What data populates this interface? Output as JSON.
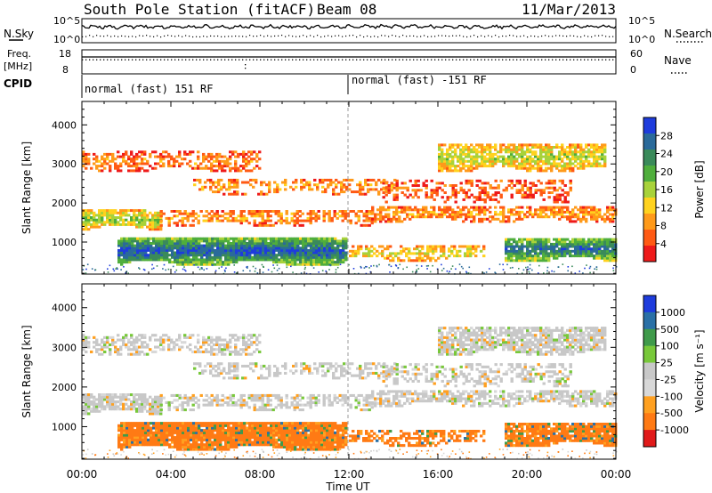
{
  "header": {
    "station": "South Pole Station (fitACF)",
    "beam": "Beam 08",
    "date": "11/Mar/2013"
  },
  "top_panels": {
    "nsky_label": "N.Sky",
    "nsearch_label": "N.Search",
    "noise_ticks_left": [
      "10^5",
      "10^0"
    ],
    "noise_ticks_right": [
      "10^5",
      "10^0"
    ],
    "freq_label_1": "Freq.",
    "freq_label_2": "[MHz]",
    "freq_ticks": [
      "18",
      "8"
    ],
    "nave_label": "Nave",
    "nave_ticks": [
      "60",
      "0"
    ],
    "cpid_label": "CPID",
    "cpid_segments": [
      "normal (fast) 151 RF",
      "normal (fast) -151 RF"
    ]
  },
  "colors": {
    "power_scale": [
      "#1e3cdc",
      "#2a6a9a",
      "#3a8a5a",
      "#4fae3c",
      "#a8d23a",
      "#ffd21e",
      "#ff9a1a",
      "#ff5a14",
      "#ee1a1a"
    ],
    "velocity_scale": [
      "#1e3cdc",
      "#2a70a6",
      "#3f9a4a",
      "#78c83a",
      "#c8c8c8",
      "#d8d8d8",
      "#ffa020",
      "#ff7a14",
      "#e01a1a"
    ]
  },
  "chart_data": [
    {
      "type": "heatmap",
      "title": "Power",
      "xlabel": "Time UT",
      "ylabel": "Slant Range [km]",
      "x_ticks": [
        "00:00",
        "04:00",
        "08:00",
        "12:00",
        "16:00",
        "20:00",
        "00:00"
      ],
      "xlim_hours": [
        0,
        24
      ],
      "ylim_km": [
        180,
        4600
      ],
      "y_ticks": [
        1000,
        2000,
        3000,
        4000
      ],
      "colorbar_label": "Power [dB]",
      "colorbar_ticks": [
        "28",
        "24",
        "20",
        "16",
        "12",
        "8",
        "4"
      ],
      "colorbar_range": [
        0,
        30
      ],
      "echo_bands": [
        {
          "t_start": 1.6,
          "t_end": 11.8,
          "range_low_km": 400,
          "range_high_km": 1100,
          "peak_db": 30
        },
        {
          "t_start": 19.0,
          "t_end": 24.0,
          "range_low_km": 500,
          "range_high_km": 1100,
          "peak_db": 30
        },
        {
          "t_start": 0.0,
          "t_end": 3.5,
          "range_low_km": 1300,
          "range_high_km": 1800,
          "peak_db": 20
        },
        {
          "t_start": 16.0,
          "t_end": 23.5,
          "range_low_km": 2800,
          "range_high_km": 3500,
          "peak_db": 20
        }
      ]
    },
    {
      "type": "heatmap",
      "title": "Velocity",
      "xlabel": "Time UT",
      "ylabel": "Slant Range [km]",
      "x_ticks": [
        "00:00",
        "04:00",
        "08:00",
        "12:00",
        "16:00",
        "20:00",
        "00:00"
      ],
      "xlim_hours": [
        0,
        24
      ],
      "ylim_km": [
        180,
        4600
      ],
      "y_ticks": [
        1000,
        2000,
        3000,
        4000
      ],
      "colorbar_label": "Velocity [m s⁻¹]",
      "colorbar_ticks": [
        "1000",
        "500",
        "100",
        "25",
        "-25",
        "-100",
        "-500",
        "-1000"
      ],
      "colorbar_range": [
        -1000,
        1000
      ]
    }
  ]
}
